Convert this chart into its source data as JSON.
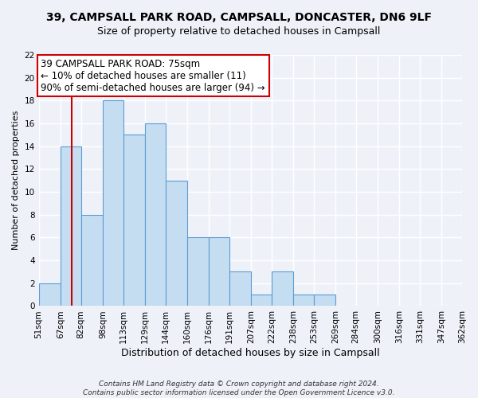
{
  "title_line1": "39, CAMPSALL PARK ROAD, CAMPSALL, DONCASTER, DN6 9LF",
  "title_line2": "Size of property relative to detached houses in Campsall",
  "xlabel": "Distribution of detached houses by size in Campsall",
  "ylabel": "Number of detached properties",
  "bin_edges": [
    51,
    67,
    82,
    98,
    113,
    129,
    144,
    160,
    176,
    191,
    207,
    222,
    238,
    253,
    269,
    284,
    300,
    316,
    331,
    347,
    362
  ],
  "bin_labels": [
    "51sqm",
    "67sqm",
    "82sqm",
    "98sqm",
    "113sqm",
    "129sqm",
    "144sqm",
    "160sqm",
    "176sqm",
    "191sqm",
    "207sqm",
    "222sqm",
    "238sqm",
    "253sqm",
    "269sqm",
    "284sqm",
    "300sqm",
    "316sqm",
    "331sqm",
    "347sqm",
    "362sqm"
  ],
  "counts": [
    2,
    14,
    8,
    18,
    15,
    16,
    11,
    6,
    6,
    3,
    1,
    3,
    1,
    1,
    0,
    0,
    0,
    0,
    0,
    0
  ],
  "bar_color": "#c5ddf0",
  "bar_edge_color": "#5b9bd5",
  "vline_x": 75,
  "vline_color": "#cc0000",
  "annotation_text": "39 CAMPSALL PARK ROAD: 75sqm\n← 10% of detached houses are smaller (11)\n90% of semi-detached houses are larger (94) →",
  "annotation_box_color": "white",
  "annotation_box_edge": "#cc0000",
  "ylim": [
    0,
    22
  ],
  "yticks": [
    0,
    2,
    4,
    6,
    8,
    10,
    12,
    14,
    16,
    18,
    20,
    22
  ],
  "footer_line1": "Contains HM Land Registry data © Crown copyright and database right 2024.",
  "footer_line2": "Contains public sector information licensed under the Open Government Licence v3.0.",
  "background_color": "#eef2f8",
  "grid_color": "#ffffff",
  "title_fontsize": 10,
  "subtitle_fontsize": 9,
  "ylabel_fontsize": 8,
  "xlabel_fontsize": 9,
  "tick_fontsize": 7.5,
  "annotation_fontsize": 8.5,
  "footer_fontsize": 6.5
}
